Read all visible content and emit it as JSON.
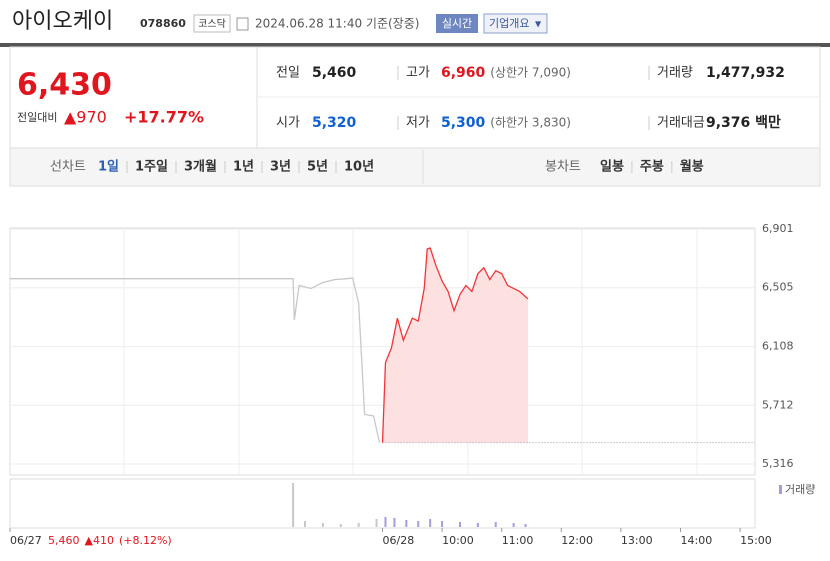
{
  "header": {
    "title": "아이오케이",
    "code": "078860",
    "market": "코스닥",
    "time": "2024.06.28 11:40 기준(장중)",
    "realtime": "실시간",
    "company": "기업개요"
  },
  "quote": {
    "price": "6,430",
    "change_label": "전일대비",
    "change": "▲970",
    "rate": "+17.77%",
    "info": [
      [
        {
          "label": "전일",
          "value": "5,460"
        },
        {
          "label": "고가",
          "value": "6,960",
          "note": "(상한가 7,090)"
        },
        {
          "label": "거래량",
          "value": "1,477,932"
        }
      ],
      [
        {
          "label": "시가",
          "value": "5,320"
        },
        {
          "label": "저가",
          "value": "5,300",
          "note": "(하한가 3,830)"
        },
        {
          "label": "거래대금",
          "value": "9,376 백만"
        }
      ]
    ]
  },
  "tabs": {
    "line_label": "선차트",
    "line": [
      "1일",
      "1주일",
      "3개월",
      "1년",
      "3년",
      "5년",
      "10년"
    ],
    "candle_label": "봉차트",
    "candle": [
      "일봉",
      "주봉",
      "월봉"
    ]
  },
  "chart_data": {
    "type": "line",
    "ylim": [
      5316,
      6901
    ],
    "yticks": [
      {
        "value": 6901,
        "label": "6,901"
      },
      {
        "value": 6505,
        "label": "6,505"
      },
      {
        "value": 6108,
        "label": "6,108"
      },
      {
        "value": 5712,
        "label": "5,712"
      },
      {
        "value": 5316,
        "label": "5,316"
      }
    ],
    "xlim": [
      2.75,
      15.25
    ],
    "xticks": [
      {
        "value": 2.75,
        "label": "06/27"
      },
      {
        "value": 9,
        "label": "06/28"
      },
      {
        "value": 10,
        "label": "10:00"
      },
      {
        "value": 11,
        "label": "11:00"
      },
      {
        "value": 12,
        "label": "12:00"
      },
      {
        "value": 13,
        "label": "13:00"
      },
      {
        "value": 14,
        "label": "14:00"
      },
      {
        "value": 15,
        "label": "15:00"
      }
    ],
    "baseline": 5460,
    "series": [
      {
        "name": "06/27",
        "color": "#c8c8c8",
        "x": [
          2.75,
          7.5,
          7.52,
          7.6,
          7.8,
          8.0,
          8.2,
          8.4,
          8.5,
          8.6,
          8.7,
          8.85,
          8.95
        ],
        "values": [
          6566,
          6566,
          6287,
          6520,
          6500,
          6540,
          6560,
          6566,
          6570,
          6400,
          5650,
          5640,
          5460
        ]
      },
      {
        "name": "06/28",
        "color": "#f0353a",
        "fill": "#fde0e0",
        "x": [
          9.0,
          9.05,
          9.15,
          9.25,
          9.35,
          9.5,
          9.6,
          9.7,
          9.75,
          9.8,
          9.9,
          10.0,
          10.1,
          10.2,
          10.3,
          10.4,
          10.5,
          10.6,
          10.7,
          10.8,
          10.9,
          11.0,
          11.1,
          11.2,
          11.3,
          11.44
        ],
        "values": [
          5460,
          6000,
          6099,
          6300,
          6150,
          6300,
          6280,
          6500,
          6766,
          6773,
          6650,
          6550,
          6480,
          6350,
          6460,
          6520,
          6480,
          6600,
          6640,
          6560,
          6620,
          6600,
          6520,
          6500,
          6480,
          6430
        ]
      }
    ],
    "volume": {
      "name": "거래량",
      "color": "#a79bdc",
      "x": [
        7.5,
        7.7,
        8.0,
        8.3,
        8.6,
        8.9,
        9.05,
        9.2,
        9.4,
        9.6,
        9.8,
        10.0,
        10.3,
        10.6,
        10.9,
        11.2,
        11.4
      ],
      "values": [
        44,
        6,
        4,
        3,
        4,
        8,
        10,
        9,
        7,
        6,
        8,
        6,
        5,
        4,
        5,
        4,
        3
      ]
    },
    "prev_day": {
      "date": "06/27",
      "price": "5,460",
      "change": "▲410",
      "rate": "(+8.12%)"
    }
  }
}
